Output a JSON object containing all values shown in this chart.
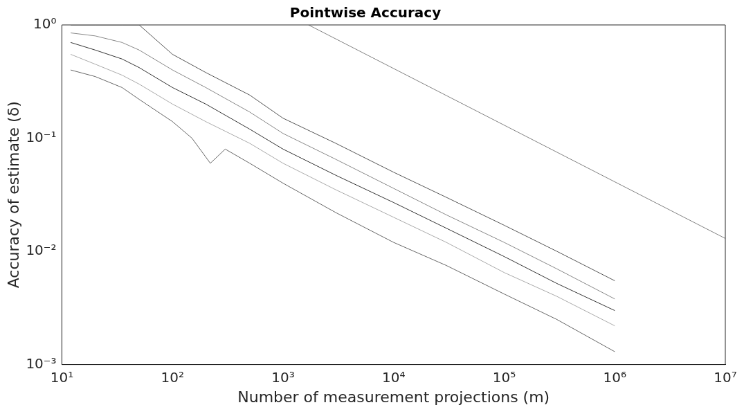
{
  "chart_data": {
    "type": "line",
    "title": "Pointwise Accuracy",
    "xlabel": "Number of measurement projections (m)",
    "ylabel": "Accuracy of estimate (δ)",
    "log": "xy",
    "grid": false,
    "legend": false,
    "marker": "none",
    "line_style": "solid",
    "xlim": [
      10,
      10000000
    ],
    "ylim": [
      0.001,
      1
    ],
    "xticks": [
      {
        "value": 10,
        "label": "10¹"
      },
      {
        "value": 100,
        "label": "10²"
      },
      {
        "value": 1000,
        "label": "10³"
      },
      {
        "value": 10000,
        "label": "10⁴"
      },
      {
        "value": 100000,
        "label": "10⁵"
      },
      {
        "value": 1000000,
        "label": "10⁶"
      },
      {
        "value": 10000000,
        "label": "10⁷"
      }
    ],
    "yticks": [
      {
        "value": 0.001,
        "label": "10⁻³"
      },
      {
        "value": 0.01,
        "label": "10⁻²"
      },
      {
        "value": 0.1,
        "label": "10⁻¹"
      },
      {
        "value": 1,
        "label": "10⁰"
      }
    ],
    "series": [
      {
        "color": "#555555",
        "x": [
          12,
          20,
          35,
          50,
          100,
          200,
          500,
          1000,
          3000,
          10000,
          30000,
          100000,
          300000,
          1000000
        ],
        "values": [
          1,
          1,
          1,
          1,
          0.55,
          0.38,
          0.24,
          0.15,
          0.09,
          0.05,
          0.03,
          0.017,
          0.01,
          0.0055
        ]
      },
      {
        "color": "#888888",
        "x": [
          12,
          20,
          35,
          50,
          100,
          200,
          500,
          1000,
          3000,
          10000,
          30000,
          100000,
          300000,
          1000000
        ],
        "values": [
          0.85,
          0.8,
          0.7,
          0.6,
          0.4,
          0.28,
          0.17,
          0.11,
          0.065,
          0.036,
          0.021,
          0.012,
          0.007,
          0.0038
        ]
      },
      {
        "color": "#333333",
        "x": [
          12,
          20,
          35,
          50,
          100,
          200,
          500,
          1000,
          3000,
          10000,
          30000,
          100000,
          300000,
          1000000
        ],
        "values": [
          0.7,
          0.6,
          0.5,
          0.42,
          0.28,
          0.2,
          0.12,
          0.08,
          0.047,
          0.027,
          0.016,
          0.009,
          0.0052,
          0.003
        ]
      },
      {
        "color": "#aaaaaa",
        "x": [
          12,
          20,
          35,
          50,
          100,
          200,
          500,
          1000,
          3000,
          10000,
          30000,
          100000,
          300000,
          1000000
        ],
        "values": [
          0.55,
          0.45,
          0.36,
          0.3,
          0.2,
          0.14,
          0.09,
          0.06,
          0.035,
          0.02,
          0.012,
          0.0065,
          0.004,
          0.0022
        ]
      },
      {
        "color": "#666666",
        "x": [
          12,
          20,
          35,
          50,
          100,
          150,
          220,
          300,
          500,
          1000,
          3000,
          10000,
          30000,
          100000,
          300000,
          1000000
        ],
        "values": [
          0.4,
          0.35,
          0.28,
          0.22,
          0.14,
          0.1,
          0.06,
          0.08,
          0.06,
          0.04,
          0.022,
          0.012,
          0.0075,
          0.0042,
          0.0025,
          0.0013
        ]
      },
      {
        "color": "#808080",
        "x": [
          1700,
          10000000
        ],
        "values": [
          1,
          0.013
        ]
      }
    ]
  }
}
